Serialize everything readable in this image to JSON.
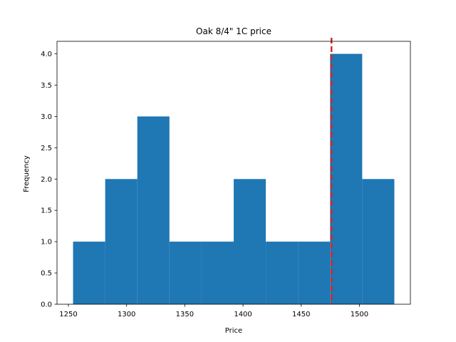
{
  "chart_data": {
    "type": "bar",
    "subtype": "histogram",
    "title": "Oak 8/4\" 1C price",
    "xlabel": "Price",
    "ylabel": "Frequency",
    "bins": [
      {
        "x0": 1254.0,
        "x1": 1281.6,
        "count": 1
      },
      {
        "x0": 1281.6,
        "x1": 1309.2,
        "count": 2
      },
      {
        "x0": 1309.2,
        "x1": 1336.8,
        "count": 3
      },
      {
        "x0": 1336.8,
        "x1": 1364.4,
        "count": 1
      },
      {
        "x0": 1364.4,
        "x1": 1392.0,
        "count": 1
      },
      {
        "x0": 1392.0,
        "x1": 1419.6,
        "count": 2
      },
      {
        "x0": 1419.6,
        "x1": 1447.2,
        "count": 1
      },
      {
        "x0": 1447.2,
        "x1": 1474.8,
        "count": 1
      },
      {
        "x0": 1474.8,
        "x1": 1502.4,
        "count": 4
      },
      {
        "x0": 1502.4,
        "x1": 1530.0,
        "count": 2
      }
    ],
    "reference_line": {
      "x": 1476,
      "style": "dashed",
      "color": "#d62728"
    },
    "xlim": [
      1240.2,
      1543.8
    ],
    "ylim": [
      0,
      4.2
    ],
    "xticks": [
      "1250",
      "1300",
      "1350",
      "1400",
      "1450",
      "1500"
    ],
    "yticks": [
      "0.0",
      "0.5",
      "1.0",
      "1.5",
      "2.0",
      "2.5",
      "3.0",
      "3.5",
      "4.0"
    ],
    "bar_color": "#1f77b4",
    "grid": false
  }
}
